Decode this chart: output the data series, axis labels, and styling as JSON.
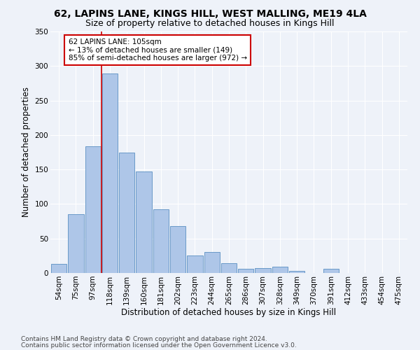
{
  "title1": "62, LAPINS LANE, KINGS HILL, WEST MALLING, ME19 4LA",
  "title2": "Size of property relative to detached houses in Kings Hill",
  "xlabel": "Distribution of detached houses by size in Kings Hill",
  "ylabel": "Number of detached properties",
  "categories": [
    "54sqm",
    "75sqm",
    "97sqm",
    "118sqm",
    "139sqm",
    "160sqm",
    "181sqm",
    "202sqm",
    "223sqm",
    "244sqm",
    "265sqm",
    "286sqm",
    "307sqm",
    "328sqm",
    "349sqm",
    "370sqm",
    "391sqm",
    "412sqm",
    "433sqm",
    "454sqm",
    "475sqm"
  ],
  "values": [
    13,
    85,
    184,
    289,
    174,
    147,
    92,
    68,
    25,
    30,
    14,
    6,
    7,
    9,
    3,
    0,
    6,
    0,
    0,
    0,
    0
  ],
  "bar_color": "#aec6e8",
  "bar_edge_color": "#5a8fc2",
  "vline_x": 2.5,
  "vline_color": "#cc0000",
  "annotation_text": "62 LAPINS LANE: 105sqm\n← 13% of detached houses are smaller (149)\n85% of semi-detached houses are larger (972) →",
  "annotation_box_color": "#ffffff",
  "annotation_box_edge": "#cc0000",
  "ylim": [
    0,
    350
  ],
  "yticks": [
    0,
    50,
    100,
    150,
    200,
    250,
    300,
    350
  ],
  "footer1": "Contains HM Land Registry data © Crown copyright and database right 2024.",
  "footer2": "Contains public sector information licensed under the Open Government Licence v3.0.",
  "bg_color": "#eef2f9",
  "title1_fontsize": 10,
  "title2_fontsize": 9,
  "xlabel_fontsize": 8.5,
  "ylabel_fontsize": 8.5,
  "tick_fontsize": 7.5,
  "footer_fontsize": 6.5,
  "ann_fontsize": 7.5
}
